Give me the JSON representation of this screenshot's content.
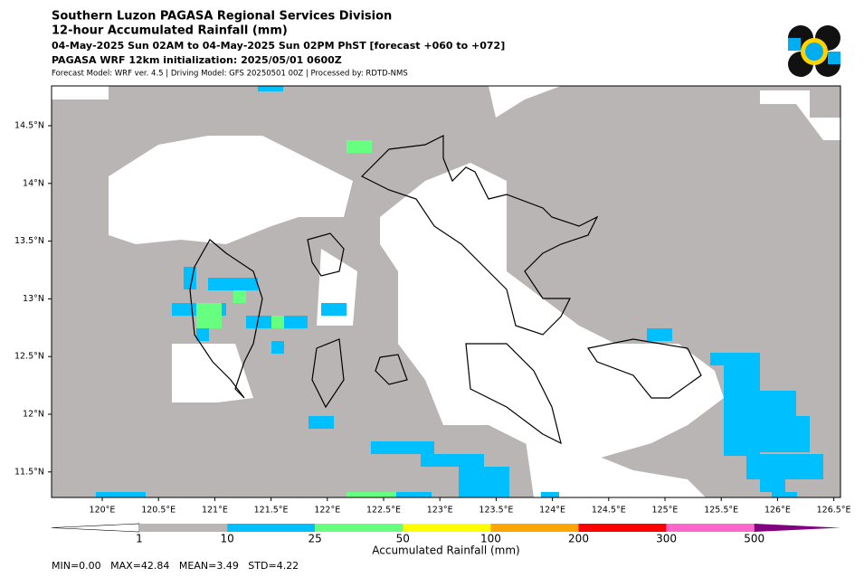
{
  "header": {
    "title": "Southern Luzon PAGASA Regional Services Division",
    "subtitle": "12-hour Accumulated Rainfall (mm)",
    "period": "04-May-2025 Sun 02AM to 04-May-2025 Sun 02PM PhST [forecast +060 to +072]",
    "init": "PAGASA WRF 12km initialization: 2025/05/01 0600Z",
    "models": "Forecast Model: WRF ver. 4.5 | Driving Model: GFS 20250501 00Z | Processed by: RDTD-NMS"
  },
  "map": {
    "lat_labels": [
      "14.5°N",
      "14°N",
      "13.5°N",
      "13°N",
      "12.5°N",
      "12°N",
      "11.5°N"
    ],
    "lon_labels": [
      "120°E",
      "120.5°E",
      "121°E",
      "121.5°E",
      "122°E",
      "122.5°E",
      "123°E",
      "123.5°E",
      "124°E",
      "124.5°E",
      "125°E",
      "125.5°E",
      "126°E",
      "126.5°E"
    ]
  },
  "colorbar": {
    "label": "Accumulated Rainfall (mm)",
    "ticks": [
      1,
      10,
      25,
      50,
      100,
      200,
      300,
      500
    ],
    "colors": [
      "#ffffff",
      "#bab5b5",
      "#00bfff",
      "#66ff80",
      "#ffff00",
      "#ffa500",
      "#ff0000",
      "#ff66cc",
      "#800080"
    ]
  },
  "stats": "MIN=0.00   MAX=42.84   MEAN=3.49   STD=4.22"
}
